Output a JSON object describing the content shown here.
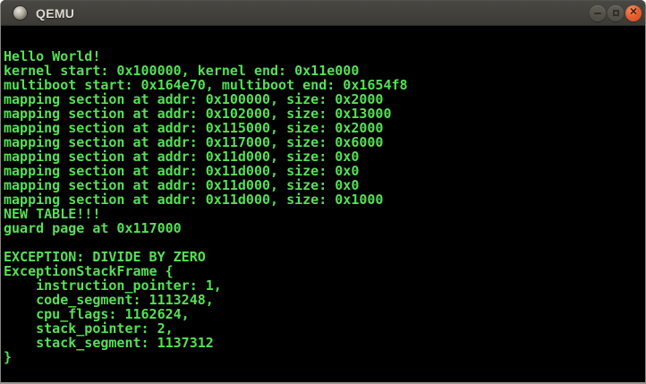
{
  "window": {
    "title": "QEMU",
    "controls": [
      {
        "name": "minimize"
      },
      {
        "name": "maximize"
      },
      {
        "name": "close"
      }
    ]
  },
  "colors": {
    "terminal_green": "#55e055",
    "terminal_bg": "#000000",
    "titlebar_top": "#4a4843",
    "titlebar_bottom": "#3c3a35",
    "close_button": "#e85f30"
  },
  "terminal": {
    "lines": [
      "Hello World!",
      "kernel start: 0x100000, kernel end: 0x11e000",
      "multiboot start: 0x164e70, multiboot end: 0x1654f8",
      "mapping section at addr: 0x100000, size: 0x2000",
      "mapping section at addr: 0x102000, size: 0x13000",
      "mapping section at addr: 0x115000, size: 0x2000",
      "mapping section at addr: 0x117000, size: 0x6000",
      "mapping section at addr: 0x11d000, size: 0x0",
      "mapping section at addr: 0x11d000, size: 0x0",
      "mapping section at addr: 0x11d000, size: 0x0",
      "mapping section at addr: 0x11d000, size: 0x1000",
      "NEW TABLE!!!",
      "guard page at 0x117000",
      "",
      "EXCEPTION: DIVIDE BY ZERO",
      "ExceptionStackFrame {",
      "    instruction_pointer: 1,",
      "    code_segment: 1113248,",
      "    cpu_flags: 1162624,",
      "    stack_pointer: 2,",
      "    stack_segment: 1137312",
      "}"
    ]
  }
}
